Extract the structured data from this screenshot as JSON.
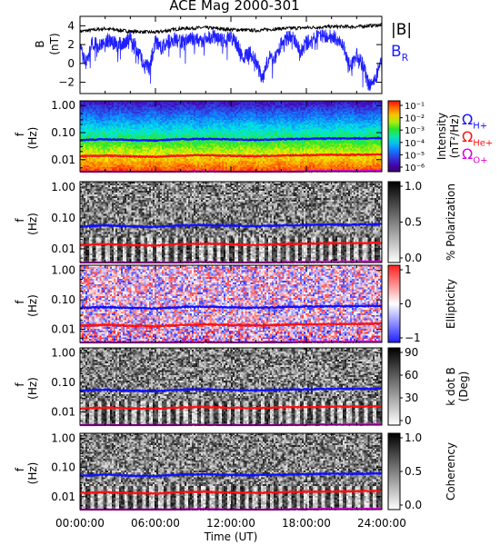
{
  "title": "ACE Mag 2000-301",
  "colors": {
    "B_total": "#000000",
    "B_R": "#1f1fff",
    "H": "#1010ff",
    "He": "#ff1010",
    "O": "#e000e0"
  },
  "xaxis": {
    "label": "Time (UT)",
    "ticks": [
      "00:00:00",
      "06:00:00",
      "12:00:00",
      "18:00:00",
      "24:00:00"
    ],
    "range_hours": [
      0,
      24
    ]
  },
  "chart_data": [
    {
      "type": "line",
      "ylabel": "B",
      "yunit": "(nT)",
      "yticks": [
        "4",
        "2",
        "0",
        "−2"
      ],
      "ylim": [
        -3.2,
        5
      ],
      "legend": [
        {
          "text": "|B|",
          "color": "#000000"
        },
        {
          "text": "B",
          "sub": "R",
          "color": "#1f1fff"
        }
      ],
      "series": [
        {
          "name": "|B|",
          "x_hours": [
            0,
            2,
            4,
            6,
            8,
            10,
            12,
            14,
            16,
            18,
            20,
            22,
            24
          ],
          "values": [
            3.4,
            3.7,
            3.4,
            3.3,
            3.7,
            3.8,
            3.6,
            3.5,
            3.7,
            3.8,
            3.9,
            3.9,
            4.1
          ]
        },
        {
          "name": "B_R",
          "x_hours": [
            0,
            0.5,
            1,
            1.5,
            2,
            2.5,
            3,
            3.5,
            4,
            4.5,
            5,
            5.5,
            6,
            6.5,
            7,
            7.5,
            8,
            8.5,
            9,
            9.5,
            10,
            10.5,
            11,
            11.5,
            12,
            12.5,
            13,
            13.5,
            14,
            14.5,
            15,
            15.5,
            16,
            16.5,
            17,
            17.5,
            18,
            18.5,
            19,
            19.5,
            20,
            20.5,
            21,
            21.5,
            22,
            22.5,
            23,
            23.5,
            24
          ],
          "values": [
            1.5,
            0,
            2.2,
            1.8,
            2.4,
            2.5,
            1.9,
            2.3,
            2.6,
            1.6,
            0.2,
            -0.5,
            2.4,
            1.6,
            2.3,
            2.5,
            2.3,
            2.5,
            2.6,
            2.4,
            2.5,
            2.9,
            2.6,
            2.4,
            2.8,
            2.0,
            0.6,
            1.2,
            0.3,
            -1.8,
            0.6,
            0.5,
            2.0,
            2.8,
            2.6,
            1.2,
            2.2,
            2.4,
            3.0,
            2.9,
            2.9,
            2.5,
            1.6,
            -0.5,
            0.9,
            -0.2,
            -2.4,
            -1.5,
            0.3
          ]
        }
      ]
    },
    {
      "type": "heatmap",
      "ylabel": "f",
      "yunit": "(Hz)",
      "yscale": "log",
      "yticks": [
        "1.00",
        "0.10",
        "0.01"
      ],
      "ylim": [
        0.0036,
        1.5
      ],
      "colorbar": {
        "label": "Intensity",
        "unit": "(nT²/Hz)",
        "scale": "log",
        "ticks": [
          "10⁻¹",
          "10⁻²",
          "10⁻³",
          "10⁻⁴",
          "10⁻⁵",
          "10⁻⁶"
        ],
        "range": [
          1e-06,
          0.1
        ]
      },
      "legend": [
        {
          "text": "Ω",
          "sub": "H+",
          "color": "#1010ff"
        },
        {
          "text": "Ω",
          "sub": "He+",
          "color": "#ff1010"
        },
        {
          "text": "Ω",
          "sub": "O+",
          "color": "#e000e0"
        }
      ]
    },
    {
      "type": "heatmap",
      "ylabel": "f",
      "yunit": "(Hz)",
      "yscale": "log",
      "yticks": [
        "1.00",
        "0.10",
        "0.01"
      ],
      "ylim": [
        0.0036,
        1.5
      ],
      "colorbar": {
        "label": "% Polarization",
        "ticks": [
          "1.0",
          "0.5",
          "0.0"
        ],
        "range": [
          0,
          1
        ]
      }
    },
    {
      "type": "heatmap",
      "ylabel": "f",
      "yunit": "(Hz)",
      "yscale": "log",
      "yticks": [
        "1.00",
        "0.10",
        "0.01"
      ],
      "ylim": [
        0.0036,
        1.5
      ],
      "colorbar": {
        "label": "Ellipticity",
        "ticks": [
          "1",
          "0",
          "−1"
        ],
        "range": [
          -1,
          1
        ]
      }
    },
    {
      "type": "heatmap",
      "ylabel": "f",
      "yunit": "(Hz)",
      "yscale": "log",
      "yticks": [
        "1.00",
        "0.10",
        "0.01"
      ],
      "ylim": [
        0.0036,
        1.5
      ],
      "colorbar": {
        "label": "k dot B",
        "unit": "(Deg)",
        "ticks": [
          "90",
          "60",
          "30",
          "0"
        ],
        "range": [
          0,
          90
        ]
      }
    },
    {
      "type": "heatmap",
      "ylabel": "f",
      "yunit": "(Hz)",
      "yscale": "log",
      "yticks": [
        "1.00",
        "0.10",
        "0.01"
      ],
      "ylim": [
        0.0036,
        1.5
      ],
      "colorbar": {
        "label": "Coherency",
        "ticks": [
          "1.0",
          "0.5",
          "0.0"
        ],
        "range": [
          0,
          1
        ]
      }
    }
  ],
  "gyrofrequency_lines": {
    "x_hours": [
      0,
      2,
      4,
      6,
      8,
      10,
      12,
      14,
      16,
      18,
      20,
      22,
      24
    ],
    "H": [
      0.053,
      0.057,
      0.053,
      0.051,
      0.057,
      0.059,
      0.056,
      0.054,
      0.057,
      0.059,
      0.061,
      0.061,
      0.063
    ],
    "He": [
      0.0133,
      0.0142,
      0.0133,
      0.0128,
      0.0142,
      0.0147,
      0.0139,
      0.0135,
      0.0142,
      0.0147,
      0.0152,
      0.0152,
      0.0157
    ],
    "O": [
      0.0033,
      0.0036,
      0.0033,
      0.0032,
      0.0036,
      0.0037,
      0.0035,
      0.0034,
      0.0036,
      0.0037,
      0.0038,
      0.0038,
      0.0039
    ]
  }
}
